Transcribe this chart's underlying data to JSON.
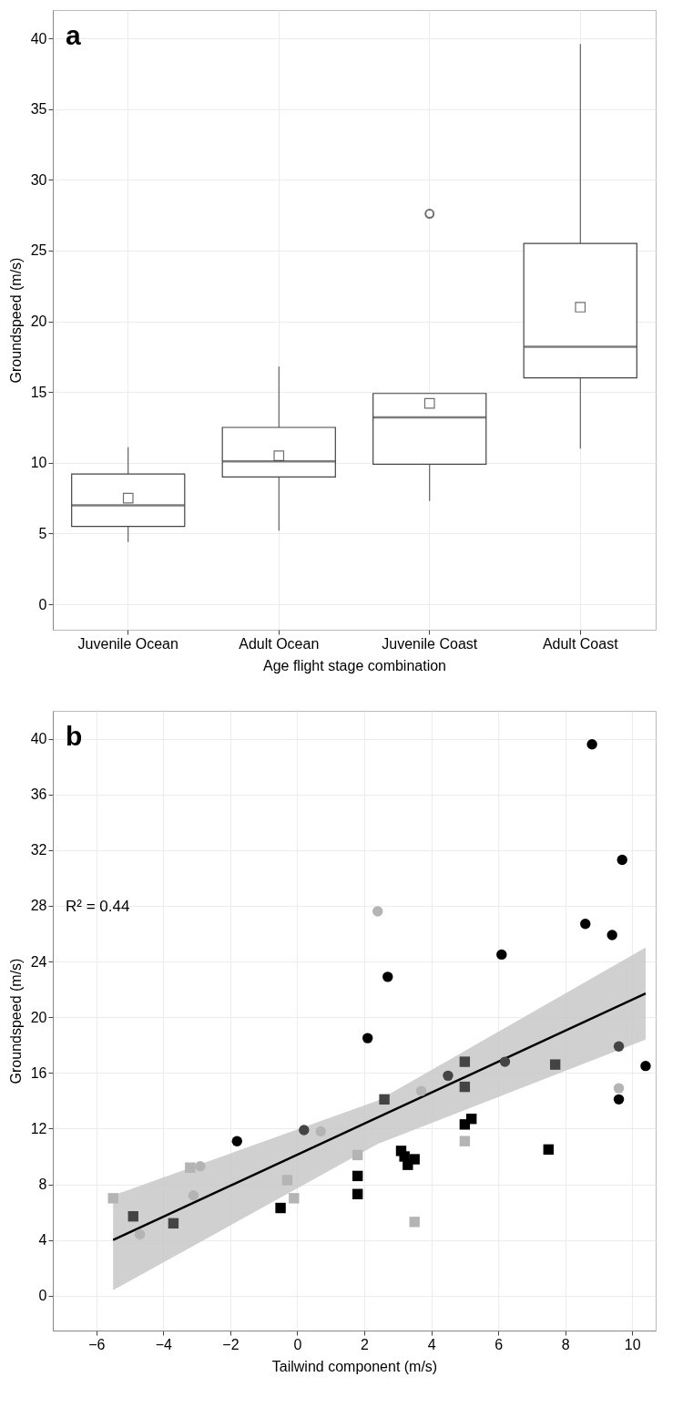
{
  "chart_data": [
    {
      "type": "box",
      "title": "a",
      "xlabel": "Age flight stage combination",
      "ylabel": "Groundspeed (m/s)",
      "categories": [
        "Juvenile Ocean",
        "Adult Ocean",
        "Juvenile Coast",
        "Adult Coast"
      ],
      "boxes": [
        {
          "low": 4.4,
          "q1": 5.5,
          "median": 7.0,
          "q3": 9.2,
          "high": 11.1,
          "mean": 7.5
        },
        {
          "low": 5.2,
          "q1": 9.0,
          "median": 10.1,
          "q3": 12.5,
          "high": 16.8,
          "mean": 10.5
        },
        {
          "low": 7.3,
          "q1": 9.9,
          "median": 13.2,
          "q3": 14.9,
          "high": 14.9,
          "mean": 14.2,
          "outliers": [
            27.6
          ]
        },
        {
          "low": 11.0,
          "q1": 16.0,
          "median": 18.2,
          "q3": 25.5,
          "high": 39.6,
          "mean": 21.0
        }
      ],
      "ylim": [
        -1.8,
        42
      ],
      "yticks": [
        0,
        5,
        10,
        15,
        20,
        25,
        30,
        35,
        40
      ],
      "grid": true
    },
    {
      "type": "scatter",
      "title": "b",
      "xlabel": "Tailwind component (m/s)",
      "ylabel": "Groundspeed (m/s)",
      "annotations": [
        "R² = 0.44"
      ],
      "xlim": [
        -7.3,
        10.7
      ],
      "xticks": [
        -6,
        -4,
        -2,
        0,
        2,
        4,
        6,
        8,
        10
      ],
      "ylim": [
        -2.5,
        42
      ],
      "yticks": [
        0,
        4,
        8,
        12,
        16,
        20,
        24,
        28,
        32,
        36,
        40
      ],
      "grid": true,
      "series": [
        {
          "type": "line",
          "color": "#000000",
          "x": [
            -5.5,
            2.4,
            10.4
          ],
          "values": [
            4.0,
            12.8,
            21.7
          ],
          "lower": [
            0.4,
            10.9,
            18.4
          ],
          "upper": [
            7.2,
            14.0,
            25.0
          ]
        },
        {
          "marker": "circle",
          "color": "#000000",
          "x": [
            8.8,
            9.7,
            8.6,
            9.4,
            6.1,
            2.7,
            2.1,
            10.4,
            9.6,
            -1.8
          ],
          "values": [
            39.6,
            31.3,
            26.7,
            25.9,
            24.5,
            22.9,
            18.5,
            16.5,
            14.1,
            11.1
          ]
        },
        {
          "marker": "circle",
          "color": "#b4b4b4",
          "x": [
            2.4,
            3.7,
            9.6,
            0.7,
            -2.9,
            -3.1,
            -4.7
          ],
          "values": [
            27.6,
            14.7,
            14.9,
            11.8,
            9.3,
            7.2,
            4.4
          ]
        },
        {
          "marker": "circle",
          "color": "#444444",
          "x": [
            4.5,
            6.2,
            9.6,
            0.2
          ],
          "values": [
            15.8,
            16.8,
            17.9,
            11.9
          ]
        },
        {
          "marker": "square",
          "color": "#444444",
          "x": [
            2.6,
            5.0,
            5.0,
            7.7,
            -4.9,
            -3.7
          ],
          "values": [
            14.1,
            16.8,
            15.0,
            16.6,
            5.7,
            5.2
          ]
        },
        {
          "marker": "square",
          "color": "#000000",
          "x": [
            -0.5,
            1.8,
            1.8,
            3.1,
            3.2,
            3.3,
            3.5,
            5.0,
            5.2,
            7.5
          ],
          "values": [
            6.3,
            8.6,
            7.3,
            10.4,
            10.0,
            9.4,
            9.8,
            12.3,
            12.7,
            10.5
          ]
        },
        {
          "marker": "square",
          "color": "#b4b4b4",
          "x": [
            -5.5,
            -3.2,
            -0.3,
            -0.1,
            1.8,
            5.0,
            3.5
          ],
          "values": [
            7.0,
            9.2,
            8.3,
            7.0,
            10.1,
            11.1,
            5.3
          ]
        }
      ]
    }
  ]
}
